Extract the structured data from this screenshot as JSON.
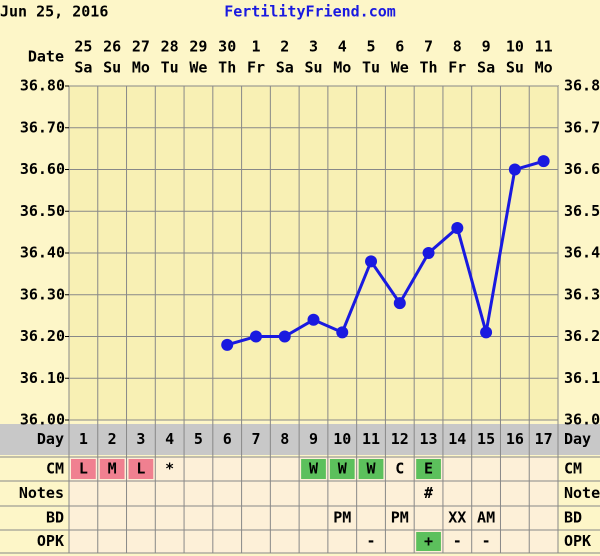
{
  "header": {
    "date": "Jun 25, 2016",
    "site": "FertilityFriend.com"
  },
  "chart_data": {
    "type": "line",
    "date_label": "Date",
    "categories": [
      "25",
      "26",
      "27",
      "28",
      "29",
      "30",
      "1",
      "2",
      "3",
      "4",
      "5",
      "6",
      "7",
      "8",
      "9",
      "10",
      "11"
    ],
    "weekdays": [
      "Sa",
      "Su",
      "Mo",
      "Tu",
      "We",
      "Th",
      "Fr",
      "Sa",
      "Su",
      "Mo",
      "Tu",
      "We",
      "Th",
      "Fr",
      "Sa",
      "Su",
      "Mo"
    ],
    "series": [
      {
        "color": "#1a1ae0",
        "values": [
          null,
          null,
          null,
          null,
          null,
          36.18,
          36.2,
          36.2,
          36.24,
          36.21,
          36.38,
          36.28,
          36.4,
          36.46,
          36.21,
          36.6,
          36.62
        ]
      }
    ],
    "ylim": [
      36.0,
      36.8
    ],
    "yticks": [
      {
        "value": 36.0,
        "label": "36.00"
      },
      {
        "value": 36.1,
        "label": "36.10"
      },
      {
        "value": 36.2,
        "label": "36.20"
      },
      {
        "value": 36.3,
        "label": "36.30"
      },
      {
        "value": 36.4,
        "label": "36.40"
      },
      {
        "value": 36.5,
        "label": "36.50"
      },
      {
        "value": 36.6,
        "label": "36.60"
      },
      {
        "value": 36.7,
        "label": "36.70"
      },
      {
        "value": 36.8,
        "label": "36.80"
      }
    ],
    "grid": true,
    "rows": [
      {
        "label": "Day",
        "cells": [
          1,
          2,
          3,
          4,
          5,
          6,
          7,
          8,
          9,
          10,
          11,
          12,
          13,
          14,
          15,
          16,
          17
        ]
      },
      {
        "label": "CM",
        "cells": [
          "L",
          "M",
          "L",
          "*",
          null,
          null,
          null,
          null,
          "W",
          "W",
          "W",
          "C",
          "E",
          null,
          null,
          null,
          null
        ],
        "colors": [
          "#f08090",
          "#f08090",
          "#f08090",
          null,
          null,
          null,
          null,
          null,
          "#5cc05c",
          "#5cc05c",
          "#5cc05c",
          null,
          "#5cc05c",
          null,
          null,
          null,
          null
        ]
      },
      {
        "label": "Notes",
        "cells": [
          null,
          null,
          null,
          null,
          null,
          null,
          null,
          null,
          null,
          null,
          null,
          null,
          "#",
          null,
          null,
          null,
          null
        ]
      },
      {
        "label": "BD",
        "cells": [
          null,
          null,
          null,
          null,
          null,
          null,
          null,
          null,
          null,
          "PM",
          null,
          "PM",
          null,
          "XX",
          "AM",
          null,
          null
        ]
      },
      {
        "label": "OPK",
        "cells": [
          null,
          null,
          null,
          null,
          null,
          null,
          null,
          null,
          null,
          null,
          "-",
          null,
          "+",
          "-",
          "-",
          null,
          null
        ],
        "colors": [
          null,
          null,
          null,
          null,
          null,
          null,
          null,
          null,
          null,
          null,
          null,
          null,
          "#5cc05c",
          null,
          null,
          null,
          null
        ]
      }
    ]
  }
}
